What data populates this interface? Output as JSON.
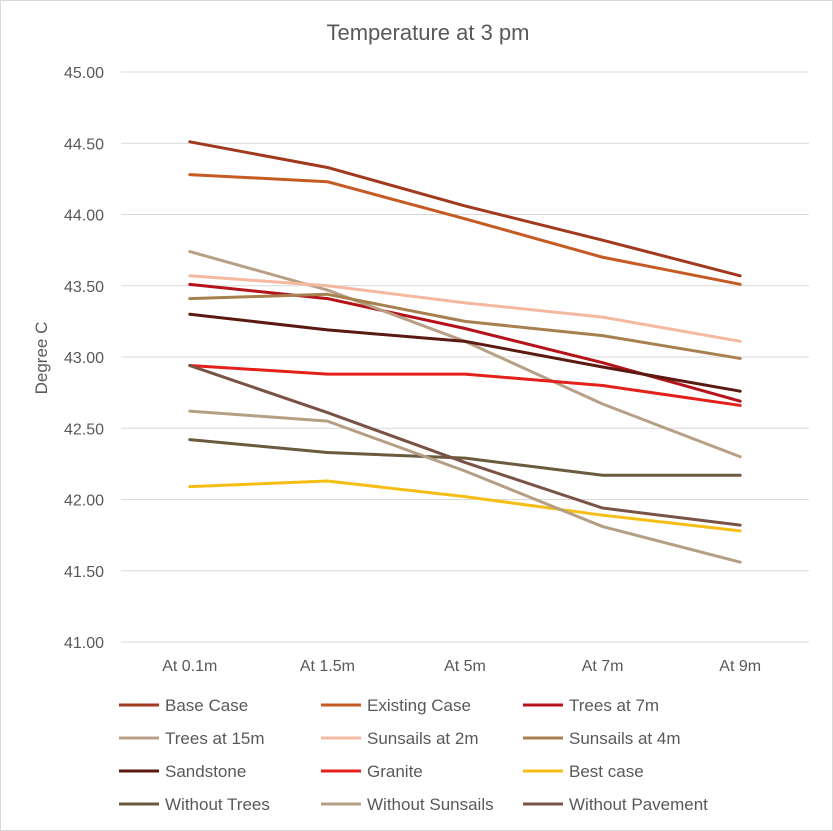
{
  "chart_data": {
    "type": "line",
    "title": "Temperature at 3 pm",
    "xlabel": "",
    "ylabel": "Degree C",
    "categories": [
      "At 0.1m",
      "At 1.5m",
      "At 5m",
      "At 7m",
      "At 9m"
    ],
    "ylim": [
      41.0,
      45.0
    ],
    "yticks": [
      "41.00",
      "41.50",
      "42.00",
      "42.50",
      "43.00",
      "43.50",
      "44.00",
      "44.50",
      "45.00"
    ],
    "grid": true,
    "legend_position": "bottom",
    "series": [
      {
        "name": "Base Case",
        "color": "#A0391D",
        "values": [
          44.51,
          44.33,
          44.06,
          43.82,
          43.57
        ]
      },
      {
        "name": "Existing Case",
        "color": "#C55A22",
        "values": [
          44.28,
          44.23,
          43.97,
          43.7,
          43.51
        ]
      },
      {
        "name": "Trees at 7m",
        "color": "#B5121B",
        "values": [
          43.51,
          43.41,
          43.2,
          42.96,
          42.69
        ]
      },
      {
        "name": "Trees at 15m",
        "color": "#B7A085",
        "values": [
          43.74,
          43.47,
          43.11,
          42.67,
          42.3
        ]
      },
      {
        "name": "Sunsails at 2m",
        "color": "#F4B9A0",
        "values": [
          43.57,
          43.5,
          43.38,
          43.28,
          43.11
        ]
      },
      {
        "name": "Sunsails at 4m",
        "color": "#A7804F",
        "values": [
          43.41,
          43.44,
          43.25,
          43.15,
          42.99
        ]
      },
      {
        "name": "Sandstone",
        "color": "#5A1A12",
        "values": [
          43.3,
          43.19,
          43.11,
          42.93,
          42.76
        ]
      },
      {
        "name": "Granite",
        "color": "#E3201B",
        "values": [
          42.94,
          42.88,
          42.88,
          42.8,
          42.66
        ]
      },
      {
        "name": "Best case",
        "color": "#F6BE15",
        "values": [
          42.09,
          42.13,
          42.02,
          41.89,
          41.78
        ]
      },
      {
        "name": "Without Trees",
        "color": "#6B5A3E",
        "values": [
          42.42,
          42.33,
          42.29,
          42.17,
          42.17
        ]
      },
      {
        "name": "Without Sunsails",
        "color": "#B59F84",
        "values": [
          42.62,
          42.55,
          42.2,
          41.81,
          41.56
        ]
      },
      {
        "name": "Without Pavement",
        "color": "#7A5347",
        "values": [
          42.94,
          42.61,
          42.26,
          41.94,
          41.82
        ]
      }
    ]
  },
  "colors": {
    "gridline": "#d9d9d9",
    "text": "#595959",
    "border": "#d9d9d9"
  }
}
